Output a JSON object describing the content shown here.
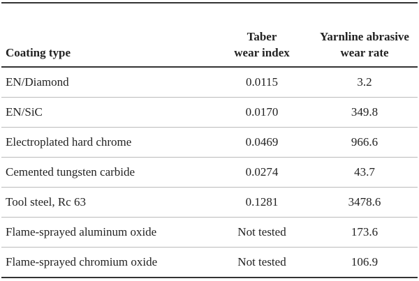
{
  "table": {
    "header": [
      "Coating type",
      "Taber\nwear index",
      "Yarnline abrasive\nwear rate"
    ],
    "rows": [
      [
        "EN/Diamond",
        "0.0115",
        "3.2"
      ],
      [
        "EN/SiC",
        "0.0170",
        "349.8"
      ],
      [
        "Electroplated hard chrome",
        "0.0469",
        "966.6"
      ],
      [
        "Cemented tungsten carbide",
        "0.0274",
        "43.7"
      ],
      [
        "Tool steel, Rc 63",
        "0.1281",
        "3478.6"
      ],
      [
        "Flame-sprayed aluminum oxide",
        "Not tested",
        "173.6"
      ],
      [
        "Flame-sprayed chromium oxide",
        "Not tested",
        "106.9"
      ]
    ]
  }
}
